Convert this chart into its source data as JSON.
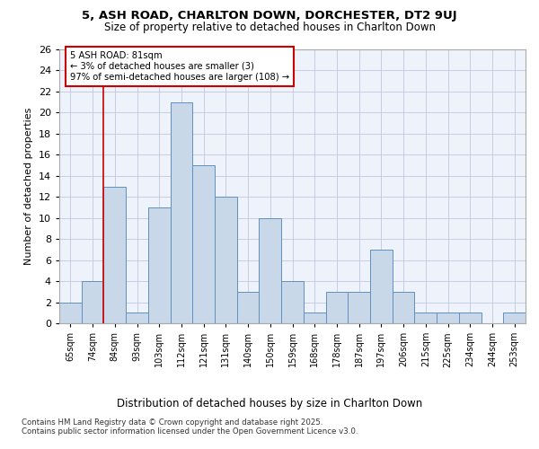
{
  "title1": "5, ASH ROAD, CHARLTON DOWN, DORCHESTER, DT2 9UJ",
  "title2": "Size of property relative to detached houses in Charlton Down",
  "xlabel": "Distribution of detached houses by size in Charlton Down",
  "ylabel": "Number of detached properties",
  "bar_labels": [
    "65sqm",
    "74sqm",
    "84sqm",
    "93sqm",
    "103sqm",
    "112sqm",
    "121sqm",
    "131sqm",
    "140sqm",
    "150sqm",
    "159sqm",
    "168sqm",
    "178sqm",
    "187sqm",
    "197sqm",
    "206sqm",
    "215sqm",
    "225sqm",
    "234sqm",
    "244sqm",
    "253sqm"
  ],
  "bar_values": [
    2,
    4,
    13,
    1,
    11,
    21,
    15,
    12,
    3,
    10,
    4,
    1,
    3,
    3,
    7,
    3,
    1,
    1,
    1,
    0,
    1
  ],
  "bar_color": "#c8d8e8",
  "bar_edge_color": "#6090c0",
  "annotation_text": "5 ASH ROAD: 81sqm\n← 3% of detached houses are smaller (3)\n97% of semi-detached houses are larger (108) →",
  "vline_x": 1.5,
  "vline_color": "#cc0000",
  "annotation_box_color": "#cc0000",
  "footer1": "Contains HM Land Registry data © Crown copyright and database right 2025.",
  "footer2": "Contains public sector information licensed under the Open Government Licence v3.0.",
  "bg_color": "#eef2fa",
  "grid_color": "#c0c8e0",
  "ylim": [
    0,
    26
  ],
  "yticks": [
    0,
    2,
    4,
    6,
    8,
    10,
    12,
    14,
    16,
    18,
    20,
    22,
    24,
    26
  ]
}
